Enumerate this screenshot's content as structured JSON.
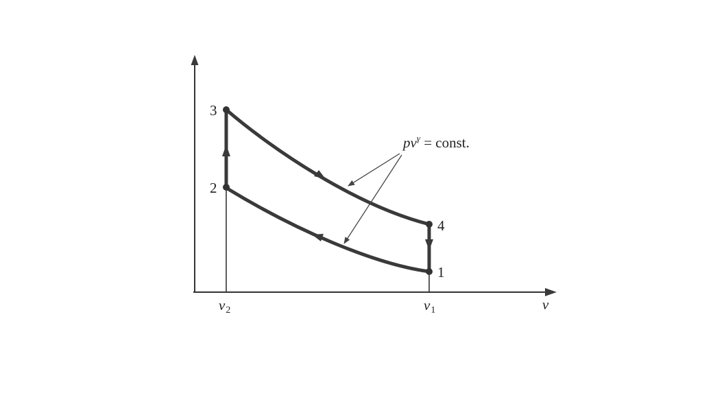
{
  "figure": {
    "axes": {
      "x_label": "v",
      "x_ticks": [
        {
          "main": "v",
          "sub": "2"
        },
        {
          "main": "v",
          "sub": "1"
        }
      ]
    },
    "points": [
      {
        "label": "1"
      },
      {
        "label": "2"
      },
      {
        "label": "3"
      },
      {
        "label": "4"
      }
    ],
    "annotation": {
      "expr_base": "pv",
      "expr_exp": "γ",
      "expr_rest": " = const."
    },
    "colors": {
      "curve": "#3a3a3a",
      "axis": "#333333"
    }
  }
}
